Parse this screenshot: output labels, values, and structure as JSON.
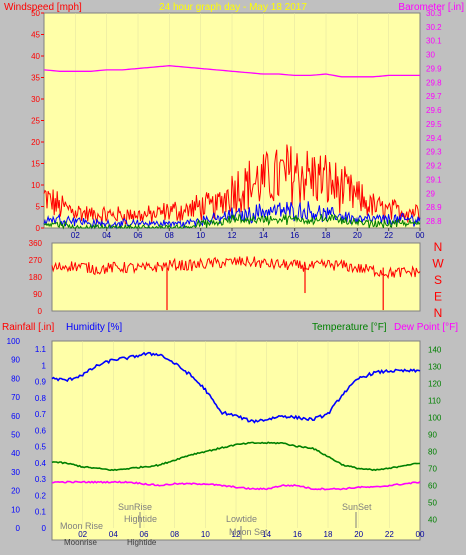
{
  "colors": {
    "background": "#c0c0c0",
    "plot_bg": "#ffffa8",
    "red": "#ff0000",
    "blue": "#0000ff",
    "green": "#008000",
    "magenta": "#ff00ff",
    "yellow": "#ffff00",
    "darkgrey": "#808080"
  },
  "chart_data": [
    {
      "type": "line",
      "title": "24 hour graph day - May 18 2017",
      "ylabel_left": "Windspeed [mph]",
      "ylabel_right": "Barometer [.in]",
      "x_ticks": [
        "02",
        "04",
        "06",
        "08",
        "10",
        "12",
        "14",
        "16",
        "18",
        "20",
        "22",
        "00"
      ],
      "y_left_ticks": [
        "50",
        "45",
        "40",
        "35",
        "30",
        "25",
        "20",
        "15",
        "10",
        "5",
        "0"
      ],
      "y_left_lim": [
        0,
        50
      ],
      "y_right_ticks": [
        "30.3",
        "30.2",
        "30.1",
        "30",
        "29.9",
        "29.8",
        "29.7",
        "29.6",
        "29.5",
        "29.4",
        "29.3",
        "29.2",
        "29.1",
        "29",
        "28.9",
        "28.8"
      ],
      "y_right_lim": [
        28.75,
        30.3
      ],
      "hours": [
        0,
        1,
        2,
        3,
        4,
        5,
        6,
        7,
        8,
        9,
        10,
        11,
        12,
        13,
        14,
        15,
        16,
        17,
        18,
        19,
        20,
        21,
        22,
        23,
        24
      ],
      "series": [
        {
          "name": "Barometer",
          "color": "magenta",
          "axis": "right",
          "values": [
            29.89,
            29.88,
            29.88,
            29.88,
            29.89,
            29.89,
            29.9,
            29.91,
            29.92,
            29.91,
            29.9,
            29.89,
            29.88,
            29.87,
            29.86,
            29.86,
            29.85,
            29.85,
            29.86,
            29.84,
            29.84,
            29.84,
            29.85,
            29.85,
            29.85
          ]
        },
        {
          "name": "Gust",
          "color": "red",
          "axis": "left",
          "values": [
            7,
            5,
            4,
            3,
            3,
            3,
            3,
            3,
            4,
            4,
            5,
            5,
            9,
            10,
            11,
            12,
            13,
            12,
            11,
            9,
            7,
            5,
            4,
            4,
            4
          ]
        },
        {
          "name": "Wind",
          "color": "blue",
          "axis": "left",
          "values": [
            2,
            2,
            2,
            1,
            1,
            1,
            1,
            1,
            1,
            1,
            2,
            2,
            3,
            3,
            4,
            4,
            4,
            4,
            3,
            3,
            2,
            2,
            2,
            2,
            2
          ]
        },
        {
          "name": "Average",
          "color": "green",
          "axis": "left",
          "values": [
            1,
            1,
            0,
            0,
            0,
            0,
            0,
            0,
            0,
            0,
            1,
            1,
            2,
            2,
            2,
            2,
            2,
            2,
            2,
            2,
            1,
            1,
            1,
            1,
            1
          ]
        }
      ]
    },
    {
      "type": "line",
      "ylabel_right": [
        "N",
        "W",
        "S",
        "E",
        "N"
      ],
      "y_left_ticks": [
        "360",
        "270",
        "180",
        "90",
        "0"
      ],
      "y_left_lim": [
        0,
        360
      ],
      "series": [
        {
          "name": "Wind direction",
          "color": "red",
          "values": [
            225,
            240,
            235,
            220,
            230,
            230,
            225,
            235,
            245,
            240,
            250,
            255,
            260,
            260,
            250,
            245,
            240,
            235,
            245,
            240,
            225,
            215,
            200,
            205,
            210
          ]
        }
      ]
    },
    {
      "type": "line",
      "labels": {
        "rainfall": "Rainfall [.in]",
        "humidity": "Humidity [%]",
        "temperature": "Temperature [°F]",
        "dewpoint": "Dew Point [°F]"
      },
      "humidity_ticks": [
        "100",
        "90",
        "80",
        "70",
        "60",
        "50",
        "40",
        "30",
        "20",
        "10",
        "0"
      ],
      "rain_ticks": [
        "1.1",
        "1",
        "0.9",
        "0.8",
        "0.7",
        "0.6",
        "0.5",
        "0.4",
        "0.3",
        "0.2",
        "0.1",
        "0"
      ],
      "temp_ticks": [
        "140",
        "130",
        "120",
        "110",
        "100",
        "90",
        "80",
        "70",
        "60",
        "50",
        "40"
      ],
      "temp_lim": [
        35,
        145
      ],
      "x_ticks": [
        "02",
        "04",
        "06",
        "08",
        "10",
        "12",
        "14",
        "16",
        "18",
        "20",
        "22",
        "00"
      ],
      "series": [
        {
          "name": "Humidity",
          "color": "blue",
          "axis": "humidity",
          "values": [
            80,
            79,
            82,
            87,
            90,
            91,
            93,
            93,
            88,
            82,
            74,
            62,
            60,
            57,
            58,
            60,
            59,
            58,
            61,
            72,
            80,
            83,
            84,
            84,
            84
          ]
        },
        {
          "name": "Temperature",
          "color": "green",
          "axis": "temp",
          "values": [
            74,
            73,
            71,
            70,
            69,
            70,
            71,
            72,
            75,
            78,
            80,
            82,
            84,
            85,
            85,
            85,
            83,
            82,
            77,
            72,
            70,
            69,
            70,
            72,
            73
          ]
        },
        {
          "name": "Dew Point",
          "color": "magenta",
          "axis": "temp",
          "values": [
            62,
            62,
            62,
            62,
            62,
            62,
            61,
            60,
            61,
            61,
            61,
            60,
            59,
            58,
            58,
            60,
            60,
            58,
            58,
            58,
            59,
            59,
            60,
            61,
            62
          ]
        }
      ],
      "annotations": {
        "moonrise_top": "Moon Rise",
        "sunrise": "SunRise",
        "hightide": "Hightide",
        "lowtide": "Lowtide",
        "sunset": "SunSet",
        "moonrise": "Moonrise",
        "hightide_bottom": "Hightide",
        "moonset": "Moon Set"
      }
    }
  ]
}
